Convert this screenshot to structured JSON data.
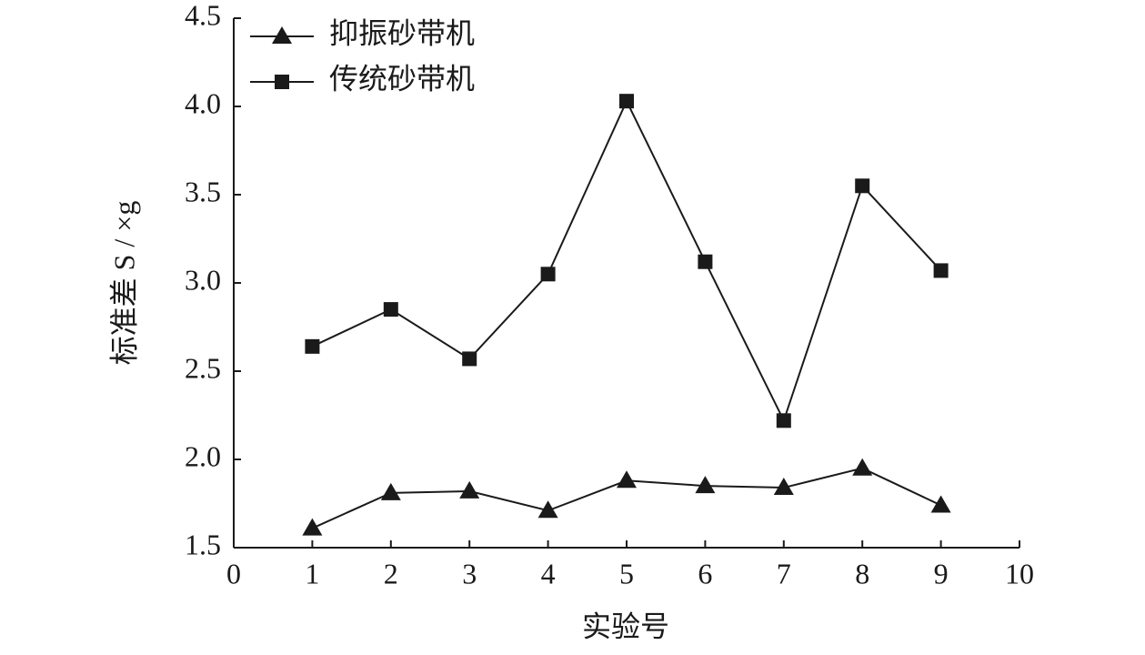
{
  "chart_data": {
    "type": "line",
    "xlabel": "实验号",
    "ylabel": "标准差 S / ×g",
    "x": [
      1,
      2,
      3,
      4,
      5,
      6,
      7,
      8,
      9
    ],
    "series": [
      {
        "name": "抑振砂带机",
        "color": "#1a1a1a",
        "marker": "triangle",
        "values": [
          1.61,
          1.81,
          1.82,
          1.71,
          1.88,
          1.85,
          1.84,
          1.95,
          1.74
        ]
      },
      {
        "name": "传统砂带机",
        "color": "#1a1a1a",
        "marker": "square",
        "values": [
          2.64,
          2.85,
          2.57,
          3.05,
          4.03,
          3.12,
          2.22,
          3.55,
          3.07
        ]
      }
    ],
    "xlim": [
      0,
      10
    ],
    "xticks": [
      0,
      1,
      2,
      3,
      4,
      5,
      6,
      7,
      8,
      9,
      10
    ],
    "ylim": [
      1.5,
      4.5
    ],
    "yticks": [
      1.5,
      {
        "value": 2,
        "label": "2.0"
      },
      2.5,
      {
        "value": 3,
        "label": "3.0"
      },
      3.5,
      {
        "value": 4,
        "label": "4.0"
      },
      4.5
    ],
    "legend": "upper left",
    "grid": false
  }
}
